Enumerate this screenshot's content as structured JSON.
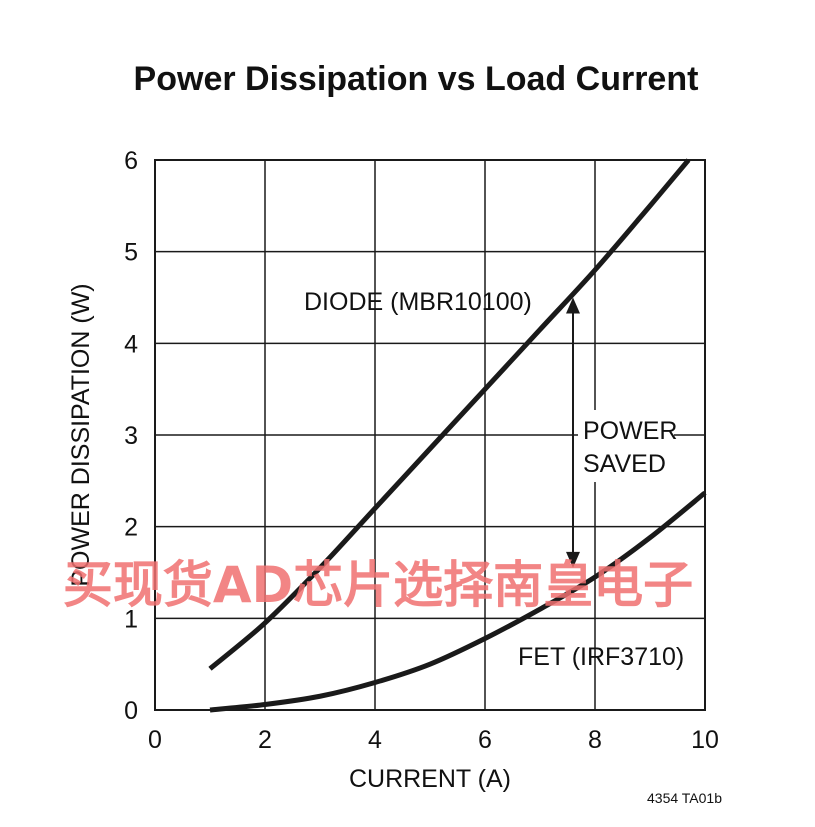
{
  "chart_data": {
    "type": "line",
    "title": "Power Dissipation vs Load Current",
    "xlabel": "CURRENT (A)",
    "ylabel": "POWER DISSIPATION (W)",
    "xlim": [
      0,
      10
    ],
    "ylim": [
      0,
      6
    ],
    "x_ticks": [
      "0",
      "2",
      "4",
      "6",
      "8",
      "10"
    ],
    "y_ticks": [
      "0",
      "1",
      "2",
      "3",
      "4",
      "5",
      "6"
    ],
    "grid": true,
    "series": [
      {
        "name": "DIODE (MBR10100)",
        "x": [
          1,
          2,
          3,
          4,
          5,
          6,
          7,
          8,
          9,
          9.7
        ],
        "y": [
          0.45,
          0.95,
          1.55,
          2.2,
          2.85,
          3.5,
          4.15,
          4.8,
          5.5,
          6.0
        ]
      },
      {
        "name": "FET (IRF3710)",
        "x": [
          1,
          2,
          3,
          4,
          5,
          6,
          7,
          8,
          9,
          10
        ],
        "y": [
          0.0,
          0.06,
          0.15,
          0.3,
          0.5,
          0.78,
          1.1,
          1.45,
          1.88,
          2.37
        ]
      }
    ],
    "annotations": {
      "power_saved_line1": "POWER",
      "power_saved_line2": "SAVED",
      "arrow_x": 7.6,
      "arrow_from_y": 4.5,
      "arrow_to_y": 1.55
    },
    "footnote": "4354 TA01b"
  },
  "watermark": "买现货AD芯片选择南皇电子",
  "colors": {
    "line": "#1a1a1a",
    "grid": "#1a1a1a",
    "watermark": "#f07070"
  }
}
